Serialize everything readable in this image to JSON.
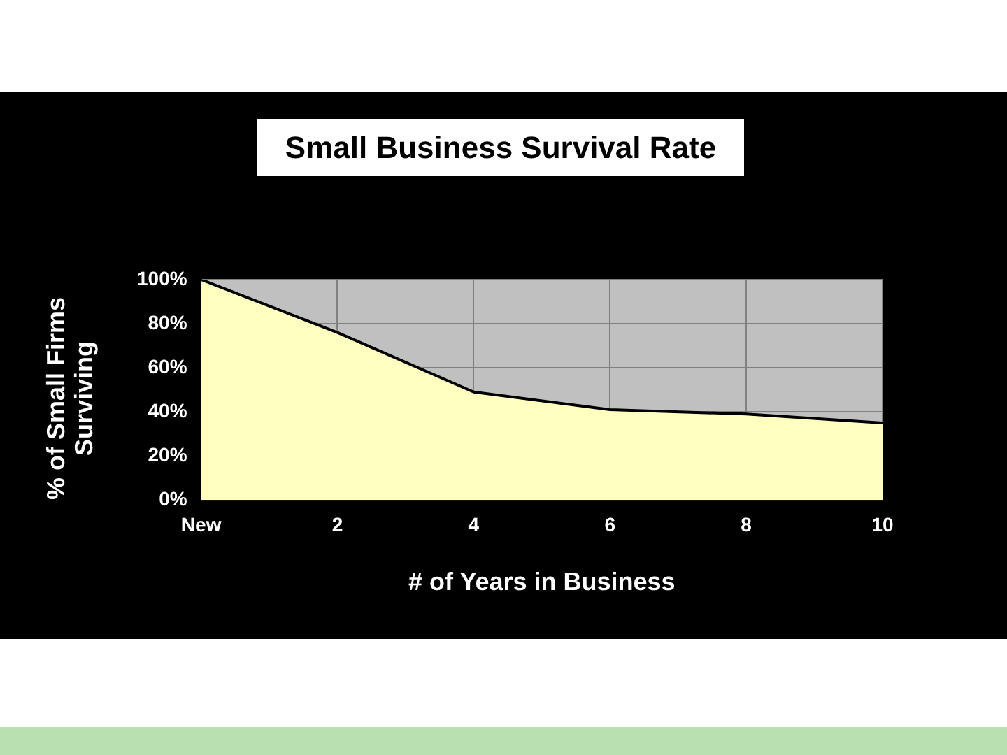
{
  "chart_data": {
    "type": "area",
    "title": "Small Business Survival Rate",
    "xlabel": "# of Years in Business",
    "ylabel": "% of Small Firms Surviving",
    "categories": [
      "New",
      "2",
      "4",
      "6",
      "8",
      "10"
    ],
    "series": [
      {
        "color": "#ffffc0",
        "values": [
          100,
          76,
          49,
          41,
          39,
          35
        ]
      }
    ],
    "ylim": [
      0,
      100
    ],
    "yticks": [
      {
        "value": 0,
        "label": "0%"
      },
      {
        "value": 20,
        "label": "20%"
      },
      {
        "value": 40,
        "label": "40%"
      },
      {
        "value": 60,
        "label": "60%"
      },
      {
        "value": 80,
        "label": "80%"
      },
      {
        "value": 100,
        "label": "100%"
      }
    ],
    "grid": true,
    "legend": false
  }
}
